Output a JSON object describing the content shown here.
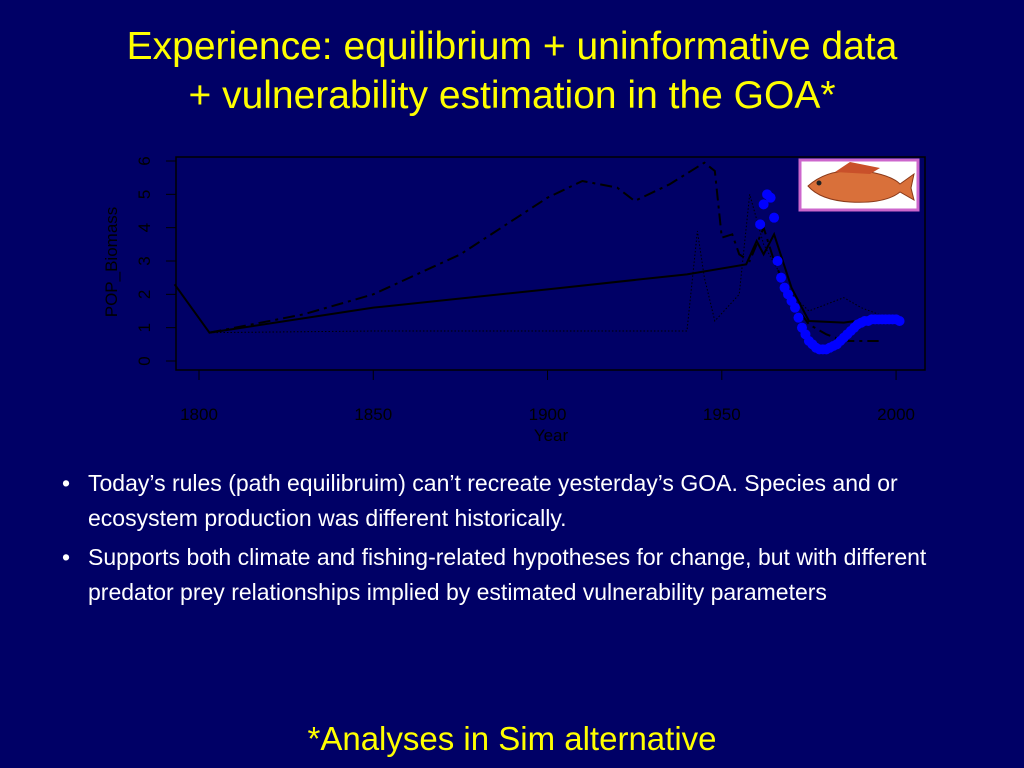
{
  "slide": {
    "title": [
      "Experience: equilibrium + uninformative data",
      "+ vulnerability estimation in the GOA*"
    ],
    "bullets": [
      "Today’s rules (path equilibruim) can’t recreate yesterday’s GOA. Species and or ecosystem production was different historically.",
      "Supports both climate and fishing-related hypotheses for change, but with different predator prey relationships implied by estimated vulnerability parameters"
    ],
    "footnote": "*Analyses in Sim alternative"
  },
  "chart_data": {
    "type": "line",
    "x_label": "Year",
    "y_label": "POP_Biomass",
    "xlim": [
      1793.4,
      2008.3
    ],
    "xticks": [
      1800,
      1850,
      1900,
      1950,
      2000
    ],
    "ylim": [
      -0.27,
      6.12
    ],
    "yticks": [
      0,
      1,
      2,
      3,
      4,
      5,
      6
    ],
    "series": [
      {
        "type": "line",
        "style": "solid",
        "color": "#000000",
        "x": [
          1793,
          1803,
          1850,
          1900,
          1940,
          1957,
          1960,
          1962,
          1965,
          1970,
          1975,
          1985,
          1995
        ],
        "values": [
          2.3,
          0.85,
          1.6,
          2.15,
          2.6,
          2.9,
          3.6,
          3.2,
          3.8,
          2.2,
          1.2,
          1.15,
          1.3
        ]
      },
      {
        "type": "line",
        "style": "dashed",
        "color": "#000000",
        "x": [
          1803,
          1830,
          1850,
          1875,
          1900,
          1910,
          1920,
          1925,
          1935,
          1945,
          1948,
          1950,
          1953,
          1955,
          1958,
          1962,
          1965,
          1970,
          1975,
          1980,
          1985,
          1995
        ],
        "values": [
          0.85,
          1.4,
          2.0,
          3.2,
          4.9,
          5.4,
          5.2,
          4.8,
          5.3,
          5.95,
          5.7,
          3.7,
          3.8,
          3.2,
          3.0,
          4.0,
          3.0,
          1.8,
          1.1,
          0.8,
          0.6,
          0.6
        ]
      },
      {
        "type": "line",
        "style": "dotted",
        "color": "#000000",
        "x": [
          1803,
          1850,
          1900,
          1940,
          1943,
          1945,
          1948,
          1955,
          1958,
          1962,
          1970,
          1975,
          1985,
          1990,
          1995
        ],
        "values": [
          0.85,
          0.9,
          0.9,
          0.9,
          3.9,
          2.5,
          1.2,
          2.0,
          5.0,
          3.5,
          2.0,
          1.5,
          1.9,
          1.6,
          1.4
        ]
      },
      {
        "type": "scatter",
        "color": "#0000ff",
        "x": [
          1961,
          1962,
          1963,
          1964,
          1965,
          1966,
          1967,
          1968,
          1969,
          1970,
          1971,
          1972,
          1973,
          1974,
          1975,
          1976,
          1977,
          1978,
          1979,
          1980,
          1981,
          1982,
          1983,
          1984,
          1985,
          1986,
          1987,
          1988,
          1989,
          1990,
          1991,
          1992,
          1993,
          1994,
          1995,
          1996,
          1997,
          1998,
          1999,
          2000,
          2001
        ],
        "values": [
          4.1,
          4.7,
          5.0,
          4.9,
          4.3,
          3.0,
          2.5,
          2.2,
          2.0,
          1.8,
          1.6,
          1.3,
          1.0,
          0.8,
          0.6,
          0.5,
          0.4,
          0.35,
          0.35,
          0.35,
          0.4,
          0.45,
          0.5,
          0.6,
          0.7,
          0.8,
          0.9,
          1.0,
          1.1,
          1.15,
          1.2,
          1.2,
          1.25,
          1.25,
          1.25,
          1.25,
          1.25,
          1.25,
          1.25,
          1.25,
          1.2
        ]
      }
    ]
  }
}
